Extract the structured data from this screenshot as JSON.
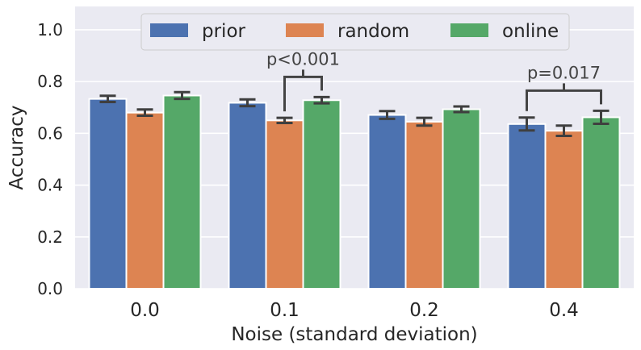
{
  "chart_data": {
    "type": "bar",
    "title": "",
    "xlabel": "Noise (standard deviation)",
    "ylabel": "Accuracy",
    "categories": [
      "0.0",
      "0.1",
      "0.2",
      "0.4"
    ],
    "ylim": [
      0,
      1.09
    ],
    "yticks": [
      "0.0",
      "0.2",
      "0.4",
      "0.6",
      "0.8",
      "1.0"
    ],
    "grid": true,
    "legend_position": "top-center",
    "series": [
      {
        "name": "prior",
        "color": "#4c72b0",
        "values": [
          0.733,
          0.718,
          0.671,
          0.636
        ],
        "err": [
          0.012,
          0.013,
          0.015,
          0.025
        ]
      },
      {
        "name": "random",
        "color": "#dd8452",
        "values": [
          0.68,
          0.65,
          0.645,
          0.61
        ],
        "err": [
          0.012,
          0.01,
          0.015,
          0.02
        ]
      },
      {
        "name": "online",
        "color": "#55a868",
        "values": [
          0.746,
          0.728,
          0.693,
          0.662
        ],
        "err": [
          0.013,
          0.012,
          0.011,
          0.025
        ]
      }
    ],
    "annotations": [
      {
        "text": "p<0.001",
        "category": "0.1",
        "from_series": 1,
        "to_series": 2
      },
      {
        "text": "p=0.017",
        "category": "0.4",
        "from_series": 0,
        "to_series": 2
      }
    ]
  }
}
